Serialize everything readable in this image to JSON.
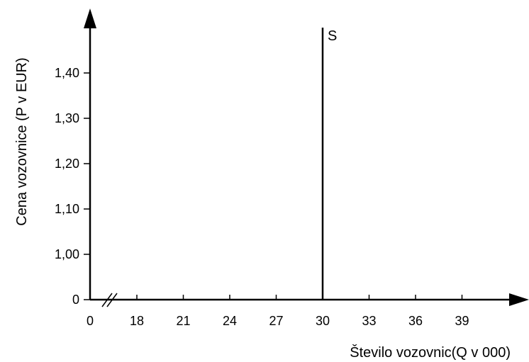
{
  "chart_data": {
    "type": "line",
    "title": "",
    "xlabel": "Število vozovnic(Q v 000)",
    "ylabel": "Cena vozovnice (P v EUR)",
    "x_ticks": [
      "0",
      "18",
      "21",
      "24",
      "27",
      "30",
      "33",
      "36",
      "39"
    ],
    "y_ticks": [
      "0",
      "1,00",
      "1,10",
      "1,20",
      "1,30",
      "1,40"
    ],
    "axis_break": "x",
    "grid": false,
    "series": [
      {
        "name": "S",
        "points": [
          {
            "x": 30,
            "y": 0
          },
          {
            "x": 30,
            "y": 1.5
          }
        ]
      }
    ]
  }
}
